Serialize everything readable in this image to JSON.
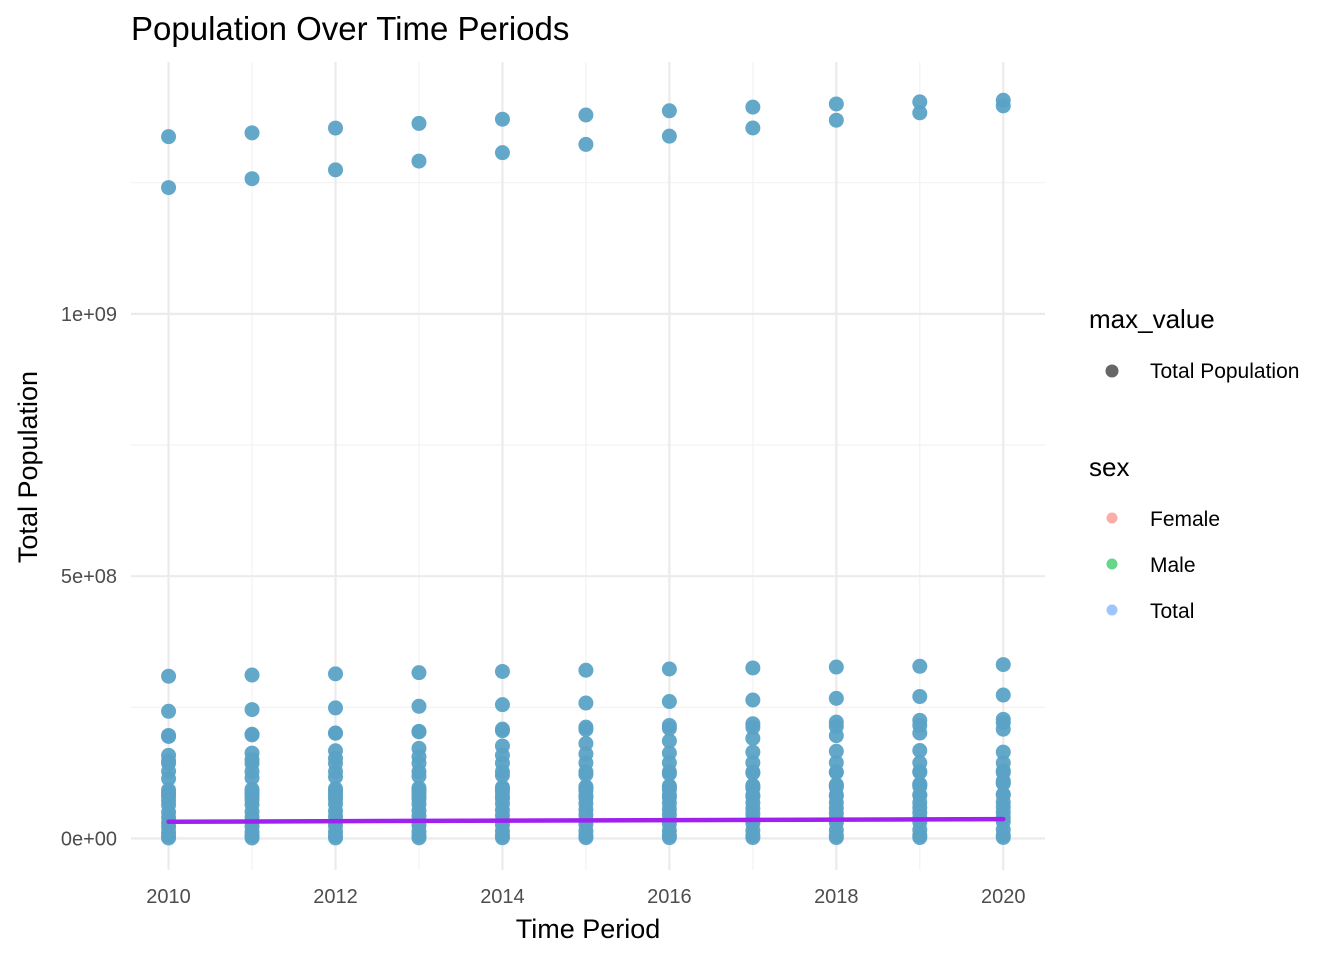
{
  "chart_data": {
    "type": "scatter",
    "title": "Population Over Time Periods",
    "xlabel": "Time Period",
    "ylabel": "Total Population",
    "xlim": [
      2009.55,
      2020.5
    ],
    "ylim": [
      -60000000,
      1480000000
    ],
    "x_ticks": [
      2010,
      2012,
      2014,
      2016,
      2018,
      2020
    ],
    "x_tick_labels": [
      "2010",
      "2012",
      "2014",
      "2016",
      "2018",
      "2020"
    ],
    "y_ticks": [
      0,
      500000000,
      1000000000
    ],
    "y_tick_labels": [
      "0e+00",
      "5e+08",
      "1e+09"
    ],
    "grid": true,
    "legend_position": "right",
    "legends": [
      {
        "title": "max_value",
        "entries": [
          {
            "label": "Total Population",
            "color": "#333333"
          }
        ]
      },
      {
        "title": "sex",
        "entries": [
          {
            "label": "Female",
            "color": "#F8766D"
          },
          {
            "label": "Male",
            "color": "#00BA38"
          },
          {
            "label": "Total",
            "color": "#619CFF"
          }
        ]
      }
    ],
    "point_color": "#5BA2C6",
    "years": [
      2010,
      2011,
      2012,
      2013,
      2014,
      2015,
      2016,
      2017,
      2018,
      2019,
      2020
    ],
    "series": [
      {
        "values": [
          1337700000,
          1345000000,
          1354000000,
          1363000000,
          1371000000,
          1379000000,
          1387000000,
          1394000000,
          1400000000,
          1404000000,
          1407000000
        ]
      },
      {
        "values": [
          1240600000,
          1257600000,
          1274500000,
          1291100000,
          1307200000,
          1322900000,
          1338700000,
          1354200000,
          1369000000,
          1383100000,
          1396400000
        ]
      },
      {
        "values": [
          309300000,
          311600000,
          313900000,
          316100000,
          318400000,
          320700000,
          323100000,
          325100000,
          326800000,
          328300000,
          331500000
        ]
      },
      {
        "values": [
          242500000,
          245700000,
          248900000,
          252000000,
          255100000,
          258200000,
          261100000,
          264000000,
          267100000,
          270600000,
          273500000
        ]
      },
      {
        "values": [
          196400000,
          198700000,
          201000000,
          203300000,
          205600000,
          207800000,
          209900000,
          211800000,
          213600000,
          215300000,
          220900000
        ]
      },
      {
        "values": [
          194500000,
          197600000,
          200700000,
          204200000,
          208500000,
          212200000,
          215500000,
          218800000,
          221900000,
          225200000,
          227200000
        ]
      },
      {
        "values": [
          158500000,
          162800000,
          167200000,
          171800000,
          176400000,
          181100000,
          185900000,
          190900000,
          196000000,
          201000000,
          208300000
        ]
      },
      {
        "values": [
          147800000,
          150200000,
          153000000,
          155800000,
          158600000,
          161200000,
          163000000,
          164700000,
          166300000,
          167700000,
          164700000
        ]
      },
      {
        "values": [
          143500000,
          143000000,
          143200000,
          143500000,
          143800000,
          144100000,
          144300000,
          144500000,
          144500000,
          144400000,
          144100000
        ]
      },
      {
        "values": [
          128100000,
          127800000,
          127600000,
          127400000,
          127300000,
          127100000,
          127000000,
          126700000,
          126500000,
          126300000,
          126000000
        ]
      },
      {
        "values": [
          114100000,
          115700000,
          117300000,
          118800000,
          120400000,
          121900000,
          123300000,
          124800000,
          126200000,
          127600000,
          128900000
        ]
      },
      {
        "values": [
          92600000,
          93900000,
          95100000,
          96400000,
          97600000,
          98900000,
          100200000,
          101300000,
          102500000,
          103700000,
          104800000
        ]
      },
      {
        "values": [
          87400000,
          89000000,
          90800000,
          92400000,
          94100000,
          95800000,
          97600000,
          99400000,
          101300000,
          103100000,
          106700000
        ]
      },
      {
        "values": [
          82900000,
          84500000,
          86100000,
          87800000,
          89600000,
          91600000,
          93700000,
          95700000,
          97600000,
          99200000,
          109600000
        ]
      },
      {
        "values": [
          80800000,
          80300000,
          80400000,
          80600000,
          81000000,
          81700000,
          82300000,
          82700000,
          82900000,
          83100000,
          83200000
        ]
      },
      {
        "values": [
          72300000,
          73300000,
          74300000,
          75300000,
          76100000,
          77600000,
          78400000,
          79800000,
          81000000,
          82400000,
          84300000
        ]
      },
      {
        "values": [
          64000000,
          64700000,
          65300000,
          65900000,
          66500000,
          67000000,
          67500000,
          68000000,
          68400000,
          68900000,
          69600000
        ]
      },
      {
        "values": [
          50000000,
          51000000,
          52000000,
          53000000,
          54000000,
          55000000,
          56000000,
          57000000,
          58000000,
          59000000,
          60000000
        ]
      },
      {
        "values": [
          40000000,
          41000000,
          42000000,
          43000000,
          44000000,
          45000000,
          46000000,
          47000000,
          48000000,
          49000000,
          50000000
        ]
      },
      {
        "values": [
          30000000,
          31000000,
          32000000,
          33000000,
          34000000,
          35000000,
          36000000,
          37000000,
          38000000,
          39000000,
          40000000
        ]
      },
      {
        "values": [
          22000000,
          23000000,
          24000000,
          25000000,
          26000000,
          27000000,
          28000000,
          29000000,
          30000000,
          31000000,
          32000000
        ]
      },
      {
        "values": [
          12000000,
          12500000,
          13000000,
          13500000,
          14000000,
          14500000,
          15000000,
          15500000,
          16000000,
          16500000,
          17000000
        ]
      },
      {
        "values": [
          5000000,
          5100000,
          5200000,
          5300000,
          5400000,
          5500000,
          5600000,
          5700000,
          5800000,
          5900000,
          6000000
        ]
      },
      {
        "values": [
          1000000,
          1100000,
          1200000,
          1300000,
          1400000,
          1500000,
          1600000,
          1700000,
          1800000,
          1900000,
          2000000
        ]
      }
    ],
    "trend_line": {
      "color": "#A020F0",
      "x": [
        2010,
        2020
      ],
      "y": [
        32000000,
        37000000
      ]
    }
  }
}
